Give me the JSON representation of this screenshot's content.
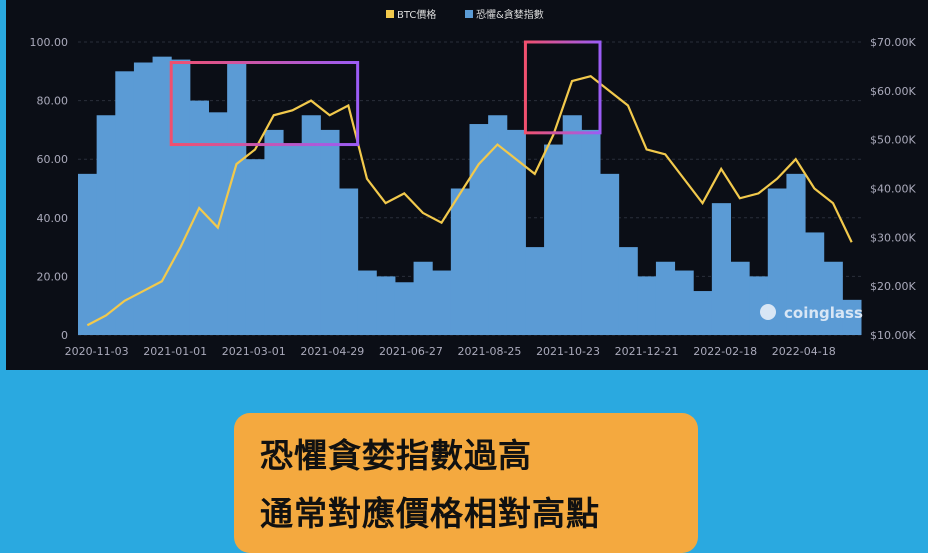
{
  "chart_data": {
    "type": "bar+line",
    "legend": [
      {
        "name": "BTC價格",
        "color": "#f2c94c"
      },
      {
        "name": "恐懼&貪婪指數",
        "color": "#5b9bd5"
      }
    ],
    "legend_position": "top",
    "y_left": {
      "ticks": [
        "0",
        "20.00",
        "40.00",
        "60.00",
        "80.00",
        "100.00"
      ],
      "range": [
        0,
        100
      ]
    },
    "y_right": {
      "ticks": [
        "$10.00K",
        "$20.00K",
        "$30.00K",
        "$40.00K",
        "$50.00K",
        "$60.00K",
        "$70.00K"
      ],
      "range": [
        10,
        70
      ],
      "unit": "K USD"
    },
    "x_ticks": [
      "2020-11-03",
      "2021-01-01",
      "2021-03-01",
      "2021-04-29",
      "2021-06-27",
      "2021-08-25",
      "2021-10-23",
      "2021-12-21",
      "2022-02-18",
      "2022-04-18"
    ],
    "x": [
      "2020-10-20",
      "2020-11-03",
      "2020-11-17",
      "2020-12-01",
      "2020-12-15",
      "2020-12-29",
      "2021-01-12",
      "2021-01-26",
      "2021-02-09",
      "2021-02-23",
      "2021-03-09",
      "2021-03-23",
      "2021-04-06",
      "2021-04-20",
      "2021-05-04",
      "2021-05-18",
      "2021-06-01",
      "2021-06-15",
      "2021-06-29",
      "2021-07-13",
      "2021-07-27",
      "2021-08-10",
      "2021-08-24",
      "2021-09-07",
      "2021-09-21",
      "2021-10-05",
      "2021-10-19",
      "2021-11-02",
      "2021-11-16",
      "2021-11-30",
      "2021-12-14",
      "2021-12-28",
      "2022-01-11",
      "2022-01-25",
      "2022-02-08",
      "2022-02-22",
      "2022-03-08",
      "2022-03-22",
      "2022-04-05",
      "2022-04-19",
      "2022-05-03",
      "2022-05-17"
    ],
    "series": [
      {
        "name": "BTC價格",
        "type": "line",
        "axis": "right",
        "values": [
          12,
          14,
          17,
          19,
          21,
          28,
          36,
          32,
          45,
          48,
          55,
          56,
          58,
          55,
          57,
          42,
          37,
          39,
          35,
          33,
          39,
          45,
          49,
          46,
          43,
          51,
          62,
          63,
          60,
          57,
          48,
          47,
          42,
          37,
          44,
          38,
          39,
          42,
          46,
          40,
          37,
          29
        ]
      },
      {
        "name": "恐懼&貪婪指數",
        "type": "bar",
        "axis": "left",
        "values": [
          55,
          75,
          90,
          93,
          95,
          94,
          80,
          76,
          93,
          60,
          70,
          65,
          75,
          70,
          50,
          22,
          20,
          18,
          25,
          22,
          50,
          72,
          75,
          70,
          30,
          65,
          75,
          70,
          55,
          30,
          20,
          25,
          22,
          15,
          45,
          25,
          20,
          50,
          55,
          35,
          25,
          12
        ]
      }
    ],
    "highlight_boxes": [
      {
        "from": "2020-12-29",
        "to": "2021-05-18",
        "y_range": [
          65,
          93
        ]
      },
      {
        "from": "2021-09-21",
        "to": "2021-11-16",
        "y_range": [
          69,
          100
        ]
      }
    ],
    "watermark": "coinglass",
    "grid": true
  },
  "caption": {
    "line1": "恐懼貪婪指數過高",
    "line2": "通常對應價格相對高點"
  }
}
